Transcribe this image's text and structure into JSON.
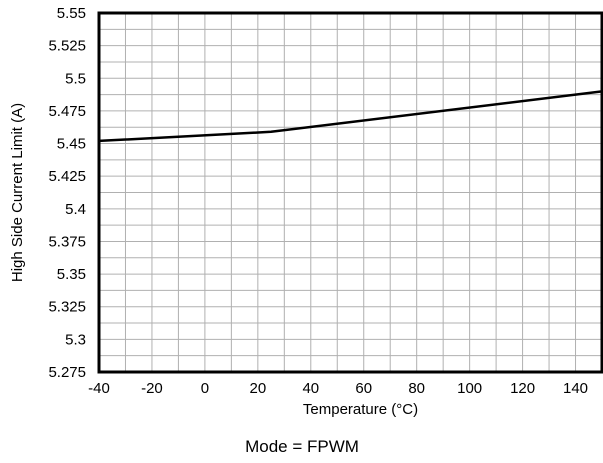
{
  "chart_data": {
    "type": "line",
    "xlabel": "Temperature (°C)",
    "ylabel": "High Side Current Limit (A)",
    "caption": "Mode = FPWM",
    "xlim": [
      -40,
      150
    ],
    "ylim": [
      5.275,
      5.55
    ],
    "x_ticks": [
      -40,
      -20,
      0,
      20,
      40,
      60,
      80,
      100,
      120,
      140
    ],
    "x_tick_labels": [
      "-40",
      "-20",
      "0",
      "20",
      "40",
      "60",
      "80",
      "100",
      "120",
      "140"
    ],
    "y_ticks": [
      5.275,
      5.3,
      5.325,
      5.35,
      5.375,
      5.4,
      5.425,
      5.45,
      5.475,
      5.5,
      5.525,
      5.55
    ],
    "y_tick_labels": [
      "5.275",
      "5.3",
      "5.325",
      "5.35",
      "5.375",
      "5.4",
      "5.425",
      "5.45",
      "5.475",
      "5.5",
      "5.525",
      "5.55"
    ],
    "grid": true,
    "series": [
      {
        "color": "#000000",
        "x": [
          -40,
          25,
          150
        ],
        "y": [
          5.452,
          5.459,
          5.49
        ]
      }
    ]
  }
}
